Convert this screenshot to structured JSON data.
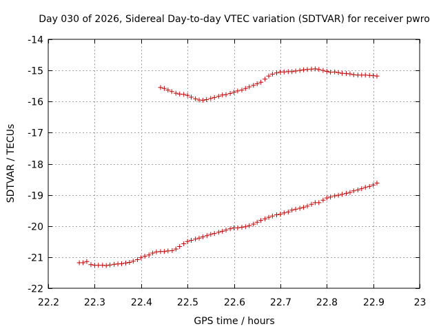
{
  "colors": {
    "series": "#c00000",
    "grid": "#a0a0a0",
    "frame": "#000000"
  },
  "chart_data": {
    "type": "scatter",
    "title": "Day 030 of 2026, Sidereal Day-to-day VTEC variation (SDTVAR) for receiver pwro",
    "xlabel": "GPS time / hours",
    "ylabel": "SDTVAR / TECUs",
    "xlim": [
      22.2,
      23.0
    ],
    "ylim": [
      -22,
      -14
    ],
    "xticks": [
      22.2,
      22.3,
      22.4,
      22.5,
      22.6,
      22.7,
      22.8,
      22.9,
      23.0
    ],
    "xtick_labels": [
      "22.2",
      "22.3",
      "22.4",
      "22.5",
      "22.6",
      "22.7",
      "22.8",
      "22.9",
      "23"
    ],
    "yticks": [
      -14,
      -15,
      -16,
      -17,
      -18,
      -19,
      -20,
      -21,
      -22
    ],
    "ytick_labels": [
      "-14",
      "-15",
      "-16",
      "-17",
      "-18",
      "-19",
      "-20",
      "-21",
      "-22"
    ],
    "grid": true,
    "marker": "+",
    "series": [
      {
        "name": "upper-arc",
        "x": [
          22.442,
          22.45,
          22.458,
          22.466,
          22.475,
          22.483,
          22.492,
          22.5,
          22.508,
          22.517,
          22.525,
          22.533,
          22.541,
          22.55,
          22.558,
          22.567,
          22.575,
          22.583,
          22.592,
          22.6,
          22.608,
          22.617,
          22.625,
          22.633,
          22.642,
          22.65,
          22.658,
          22.667,
          22.675,
          22.683,
          22.692,
          22.7,
          22.708,
          22.717,
          22.725,
          22.733,
          22.742,
          22.75,
          22.758,
          22.767,
          22.775,
          22.783,
          22.792,
          22.8,
          22.808,
          22.817,
          22.825,
          22.833,
          22.842,
          22.85,
          22.858,
          22.867,
          22.875,
          22.883,
          22.892,
          22.9,
          22.908
        ],
        "y": [
          -15.55,
          -15.58,
          -15.63,
          -15.68,
          -15.73,
          -15.76,
          -15.77,
          -15.8,
          -15.86,
          -15.91,
          -15.95,
          -15.96,
          -15.94,
          -15.9,
          -15.87,
          -15.83,
          -15.79,
          -15.78,
          -15.74,
          -15.7,
          -15.66,
          -15.63,
          -15.58,
          -15.53,
          -15.48,
          -15.43,
          -15.38,
          -15.28,
          -15.18,
          -15.12,
          -15.08,
          -15.05,
          -15.05,
          -15.04,
          -15.04,
          -15.02,
          -15.0,
          -14.98,
          -14.97,
          -14.96,
          -14.95,
          -14.97,
          -15.0,
          -15.03,
          -15.06,
          -15.05,
          -15.07,
          -15.09,
          -15.1,
          -15.11,
          -15.14,
          -15.15,
          -15.15,
          -15.15,
          -15.16,
          -15.17,
          -15.18
        ]
      },
      {
        "name": "lower-arc",
        "x": [
          22.267,
          22.275,
          22.283,
          22.292,
          22.3,
          22.308,
          22.317,
          22.325,
          22.333,
          22.342,
          22.35,
          22.358,
          22.367,
          22.375,
          22.383,
          22.392,
          22.4,
          22.408,
          22.417,
          22.425,
          22.433,
          22.442,
          22.45,
          22.458,
          22.467,
          22.475,
          22.483,
          22.492,
          22.5,
          22.508,
          22.517,
          22.525,
          22.533,
          22.542,
          22.55,
          22.558,
          22.567,
          22.575,
          22.583,
          22.592,
          22.6,
          22.608,
          22.617,
          22.625,
          22.633,
          22.642,
          22.65,
          22.658,
          22.667,
          22.675,
          22.683,
          22.692,
          22.7,
          22.708,
          22.717,
          22.725,
          22.733,
          22.742,
          22.75,
          22.758,
          22.767,
          22.775,
          22.783,
          22.792,
          22.8,
          22.808,
          22.817,
          22.825,
          22.833,
          22.842,
          22.85,
          22.858,
          22.867,
          22.875,
          22.883,
          22.892,
          22.9,
          22.908
        ],
        "y": [
          -21.18,
          -21.18,
          -21.14,
          -21.24,
          -21.26,
          -21.26,
          -21.26,
          -21.27,
          -21.25,
          -21.23,
          -21.22,
          -21.21,
          -21.19,
          -21.17,
          -21.13,
          -21.08,
          -21.02,
          -20.97,
          -20.93,
          -20.87,
          -20.83,
          -20.82,
          -20.82,
          -20.8,
          -20.79,
          -20.74,
          -20.66,
          -20.57,
          -20.5,
          -20.46,
          -20.42,
          -20.39,
          -20.35,
          -20.31,
          -20.27,
          -20.24,
          -20.2,
          -20.17,
          -20.13,
          -20.09,
          -20.06,
          -20.06,
          -20.04,
          -20.02,
          -19.99,
          -19.94,
          -19.88,
          -19.82,
          -19.77,
          -19.72,
          -19.68,
          -19.64,
          -19.62,
          -19.58,
          -19.55,
          -19.49,
          -19.46,
          -19.43,
          -19.4,
          -19.36,
          -19.3,
          -19.25,
          -19.25,
          -19.17,
          -19.1,
          -19.07,
          -19.03,
          -19.01,
          -18.98,
          -18.95,
          -18.92,
          -18.87,
          -18.84,
          -18.8,
          -18.76,
          -18.73,
          -18.68,
          -18.62
        ]
      }
    ]
  }
}
